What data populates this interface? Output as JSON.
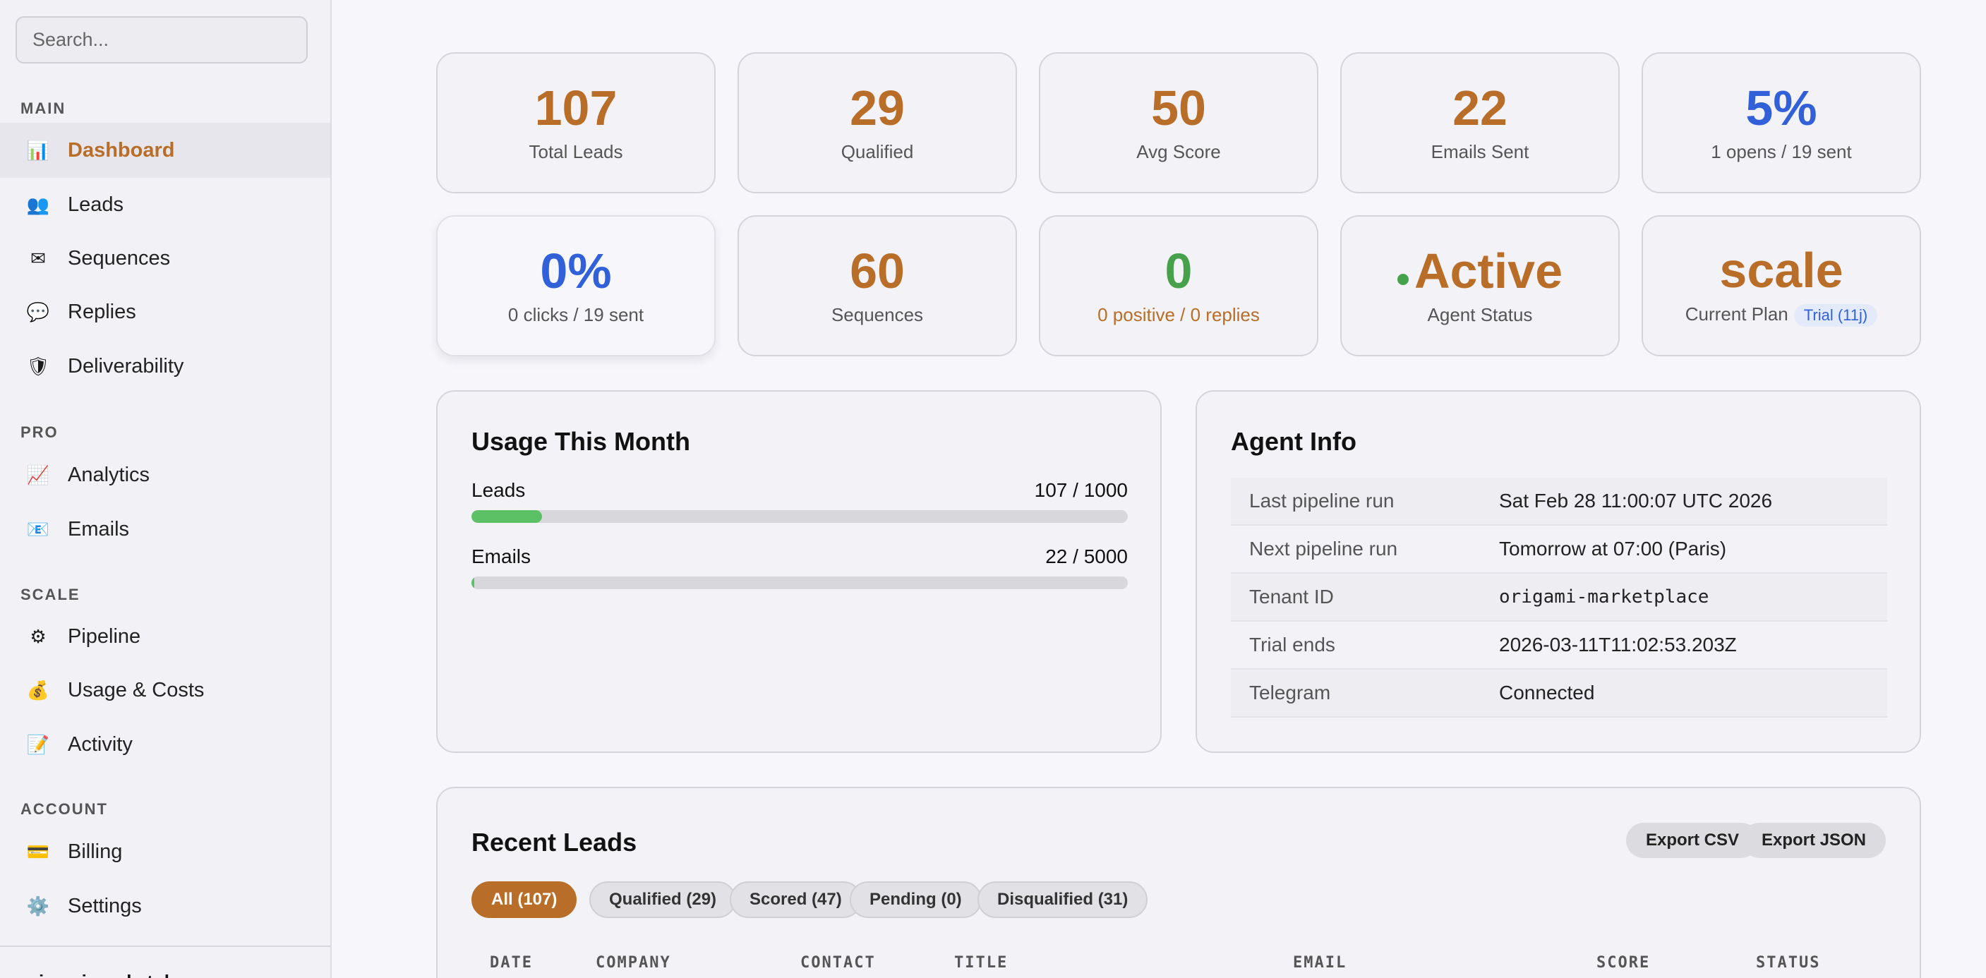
{
  "sidebar": {
    "search_placeholder": "Search...",
    "sections": {
      "main": "MAIN",
      "pro": "PRO",
      "scale": "SCALE",
      "account": "ACCOUNT"
    },
    "items": [
      {
        "icon": "📊",
        "label": "Dashboard"
      },
      {
        "icon": "👥",
        "label": "Leads"
      },
      {
        "icon": "✉",
        "label": "Sequences"
      },
      {
        "icon": "💬",
        "label": "Replies"
      },
      {
        "icon": "🛡",
        "label": "Deliverability"
      },
      {
        "icon": "📈",
        "label": "Analytics"
      },
      {
        "icon": "📧",
        "label": "Emails"
      },
      {
        "icon": "⚙",
        "label": "Pipeline"
      },
      {
        "icon": "💰",
        "label": "Usage & Costs"
      },
      {
        "icon": "📝",
        "label": "Activity"
      },
      {
        "icon": "💳",
        "label": "Billing"
      },
      {
        "icon": "⚙️",
        "label": "Settings"
      }
    ],
    "footer_tenant": "origami-marketplace"
  },
  "stats": [
    {
      "value": "107",
      "caption": "Total Leads"
    },
    {
      "value": "29",
      "caption": "Qualified"
    },
    {
      "value": "50",
      "caption": "Avg Score"
    },
    {
      "value": "22",
      "caption": "Emails Sent"
    },
    {
      "value": "5%",
      "caption": "1 opens / 19 sent"
    },
    {
      "value": "0%",
      "caption": "0 clicks / 19 sent"
    },
    {
      "value": "60",
      "caption": "Sequences"
    },
    {
      "value": "0",
      "caption": "0 positive / 0 replies"
    },
    {
      "value": "Active",
      "caption": "Agent Status"
    },
    {
      "value": "scale",
      "caption": "Current Plan",
      "badge": "Trial (11j)"
    }
  ],
  "colors": {
    "accent": "#b86e28",
    "blue": "#3160d8",
    "green": "#47a04a",
    "progress": "#5cc164"
  },
  "usage": {
    "title": "Usage This Month",
    "rows": [
      {
        "label": "Leads",
        "value_text": "107 / 1000",
        "fraction": 0.107
      },
      {
        "label": "Emails",
        "value_text": "22 / 5000",
        "fraction": 0.0044
      }
    ]
  },
  "agent_info": {
    "title": "Agent Info",
    "rows": [
      {
        "key": "Last pipeline run",
        "value": "Sat Feb 28 11:00:07 UTC 2026"
      },
      {
        "key": "Next pipeline run",
        "value": "Tomorrow at 07:00 (Paris)"
      },
      {
        "key": "Tenant ID",
        "value": "origami-marketplace"
      },
      {
        "key": "Trial ends",
        "value": "2026-03-11T11:02:53.203Z"
      },
      {
        "key": "Telegram",
        "value": "Connected"
      }
    ]
  },
  "recent_leads": {
    "title": "Recent Leads",
    "export_csv": "Export CSV",
    "export_json": "Export JSON",
    "filters": [
      "All (107)",
      "Qualified (29)",
      "Scored (47)",
      "Pending (0)",
      "Disqualified (31)"
    ],
    "columns": [
      "DATE",
      "COMPANY",
      "CONTACT",
      "TITLE",
      "EMAIL",
      "SCORE",
      "STATUS"
    ]
  }
}
